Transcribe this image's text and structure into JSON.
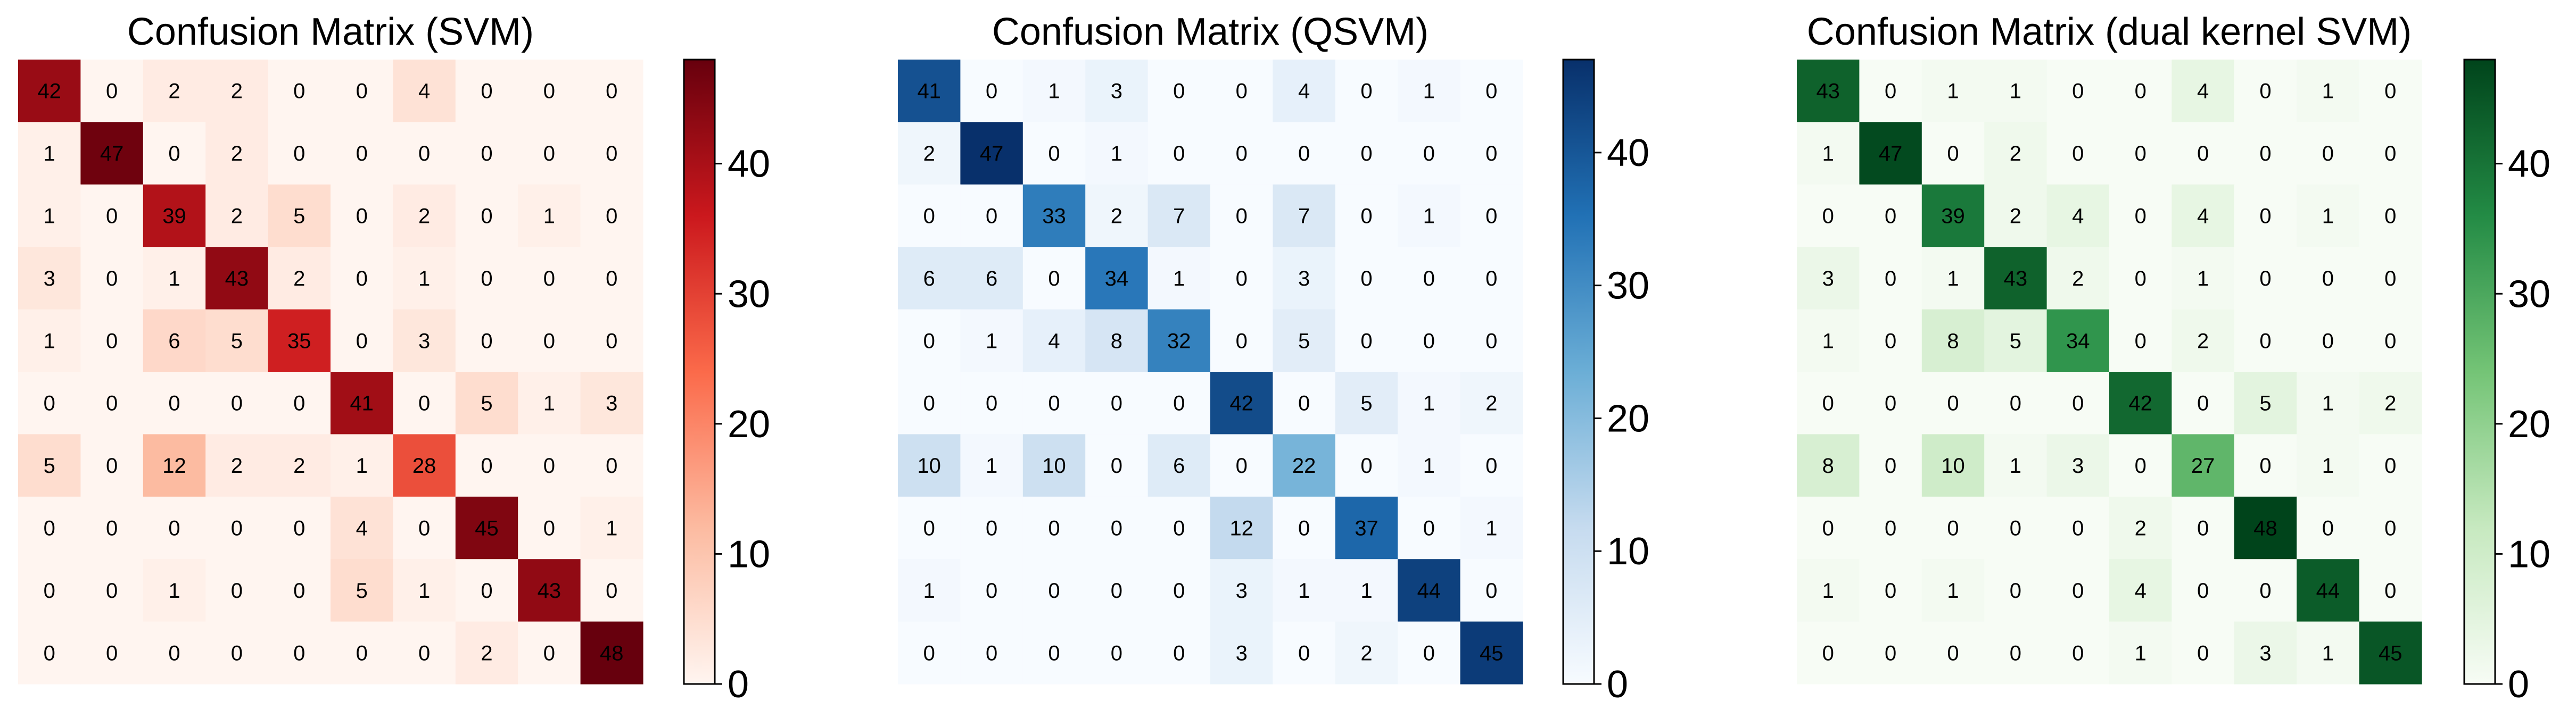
{
  "chart_data": [
    {
      "type": "heatmap",
      "title": "Confusion Matrix (SVM)",
      "colormap": "Reds",
      "colorbar": {
        "min": 0,
        "max": 48,
        "ticks": [
          0,
          10,
          20,
          30,
          40
        ],
        "colors": [
          "#fff5f0",
          "#fcbba1",
          "#fb6a4a",
          "#cb181d",
          "#67000d"
        ]
      },
      "matrix": [
        [
          42,
          0,
          2,
          2,
          0,
          0,
          4,
          0,
          0,
          0
        ],
        [
          1,
          47,
          0,
          2,
          0,
          0,
          0,
          0,
          0,
          0
        ],
        [
          1,
          0,
          39,
          2,
          5,
          0,
          2,
          0,
          1,
          0
        ],
        [
          3,
          0,
          1,
          43,
          2,
          0,
          1,
          0,
          0,
          0
        ],
        [
          1,
          0,
          6,
          5,
          35,
          0,
          3,
          0,
          0,
          0
        ],
        [
          0,
          0,
          0,
          0,
          0,
          41,
          0,
          5,
          1,
          3
        ],
        [
          5,
          0,
          12,
          2,
          2,
          1,
          28,
          0,
          0,
          0
        ],
        [
          0,
          0,
          0,
          0,
          0,
          4,
          0,
          45,
          0,
          1
        ],
        [
          0,
          0,
          1,
          0,
          0,
          5,
          1,
          0,
          43,
          0
        ],
        [
          0,
          0,
          0,
          0,
          0,
          0,
          0,
          2,
          0,
          48
        ]
      ]
    },
    {
      "type": "heatmap",
      "title": "Confusion Matrix (QSVM)",
      "colormap": "Blues",
      "colorbar": {
        "min": 0,
        "max": 47,
        "ticks": [
          0,
          10,
          20,
          30,
          40
        ],
        "colors": [
          "#f7fbff",
          "#c6dbef",
          "#6baed6",
          "#2171b5",
          "#08306b"
        ]
      },
      "matrix": [
        [
          41,
          0,
          1,
          3,
          0,
          0,
          4,
          0,
          1,
          0
        ],
        [
          2,
          47,
          0,
          1,
          0,
          0,
          0,
          0,
          0,
          0
        ],
        [
          0,
          0,
          33,
          2,
          7,
          0,
          7,
          0,
          1,
          0
        ],
        [
          6,
          6,
          0,
          34,
          1,
          0,
          3,
          0,
          0,
          0
        ],
        [
          0,
          1,
          4,
          8,
          32,
          0,
          5,
          0,
          0,
          0
        ],
        [
          0,
          0,
          0,
          0,
          0,
          42,
          0,
          5,
          1,
          2
        ],
        [
          10,
          1,
          10,
          0,
          6,
          0,
          22,
          0,
          1,
          0
        ],
        [
          0,
          0,
          0,
          0,
          0,
          12,
          0,
          37,
          0,
          1
        ],
        [
          1,
          0,
          0,
          0,
          0,
          3,
          1,
          1,
          44,
          0
        ],
        [
          0,
          0,
          0,
          0,
          0,
          3,
          0,
          2,
          0,
          45
        ]
      ]
    },
    {
      "type": "heatmap",
      "title": "Confusion Matrix (dual kernel SVM)",
      "colormap": "Greens",
      "colorbar": {
        "min": 0,
        "max": 48,
        "ticks": [
          0,
          10,
          20,
          30,
          40
        ],
        "colors": [
          "#f7fcf5",
          "#c7e9c0",
          "#74c476",
          "#238b45",
          "#00441b"
        ]
      },
      "matrix": [
        [
          43,
          0,
          1,
          1,
          0,
          0,
          4,
          0,
          1,
          0
        ],
        [
          1,
          47,
          0,
          2,
          0,
          0,
          0,
          0,
          0,
          0
        ],
        [
          0,
          0,
          39,
          2,
          4,
          0,
          4,
          0,
          1,
          0
        ],
        [
          3,
          0,
          1,
          43,
          2,
          0,
          1,
          0,
          0,
          0
        ],
        [
          1,
          0,
          8,
          5,
          34,
          0,
          2,
          0,
          0,
          0
        ],
        [
          0,
          0,
          0,
          0,
          0,
          42,
          0,
          5,
          1,
          2
        ],
        [
          8,
          0,
          10,
          1,
          3,
          0,
          27,
          0,
          1,
          0
        ],
        [
          0,
          0,
          0,
          0,
          0,
          2,
          0,
          48,
          0,
          0
        ],
        [
          1,
          0,
          1,
          0,
          0,
          4,
          0,
          0,
          44,
          0
        ],
        [
          0,
          0,
          0,
          0,
          0,
          1,
          0,
          3,
          1,
          45
        ]
      ]
    }
  ]
}
